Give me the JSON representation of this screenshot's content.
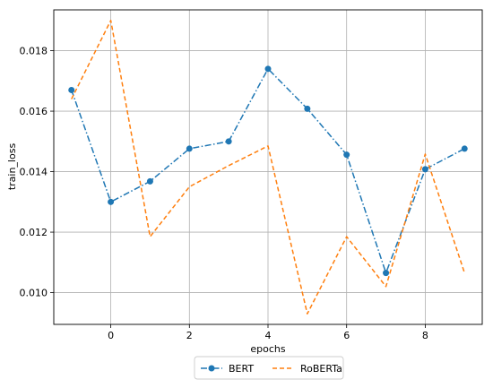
{
  "chart_data": {
    "type": "line",
    "xlabel": "epochs",
    "ylabel": "train_loss",
    "xlim": [
      -1.45,
      9.45
    ],
    "ylim": [
      0.00895,
      0.01935
    ],
    "xticks": [
      0,
      2,
      4,
      6,
      8
    ],
    "yticks": [
      0.01,
      0.012,
      0.014,
      0.016,
      0.018
    ],
    "xtick_labels": [
      "0",
      "2",
      "4",
      "6",
      "8"
    ],
    "ytick_labels": [
      "0.010",
      "0.012",
      "0.014",
      "0.016",
      "0.018"
    ],
    "grid": true,
    "legend_position": "bottom-center-outside",
    "x": [
      -1,
      0,
      1,
      2,
      3,
      4,
      5,
      6,
      7,
      8,
      9
    ],
    "series": [
      {
        "name": "BERT",
        "color": "#1f77b4",
        "linestyle": "dashdot",
        "marker": "circle",
        "values": [
          0.0167,
          0.013,
          0.01368,
          0.01476,
          0.015,
          0.0174,
          0.01608,
          0.01456,
          0.01065,
          0.01408,
          0.01476
        ]
      },
      {
        "name": "RoBERTa",
        "color": "#ff7f0e",
        "linestyle": "dashed",
        "marker": "none",
        "values": [
          0.0164,
          0.019,
          0.01185,
          0.0135,
          0.0142,
          0.01485,
          0.0093,
          0.01185,
          0.0102,
          0.01458,
          0.01065
        ]
      }
    ]
  }
}
